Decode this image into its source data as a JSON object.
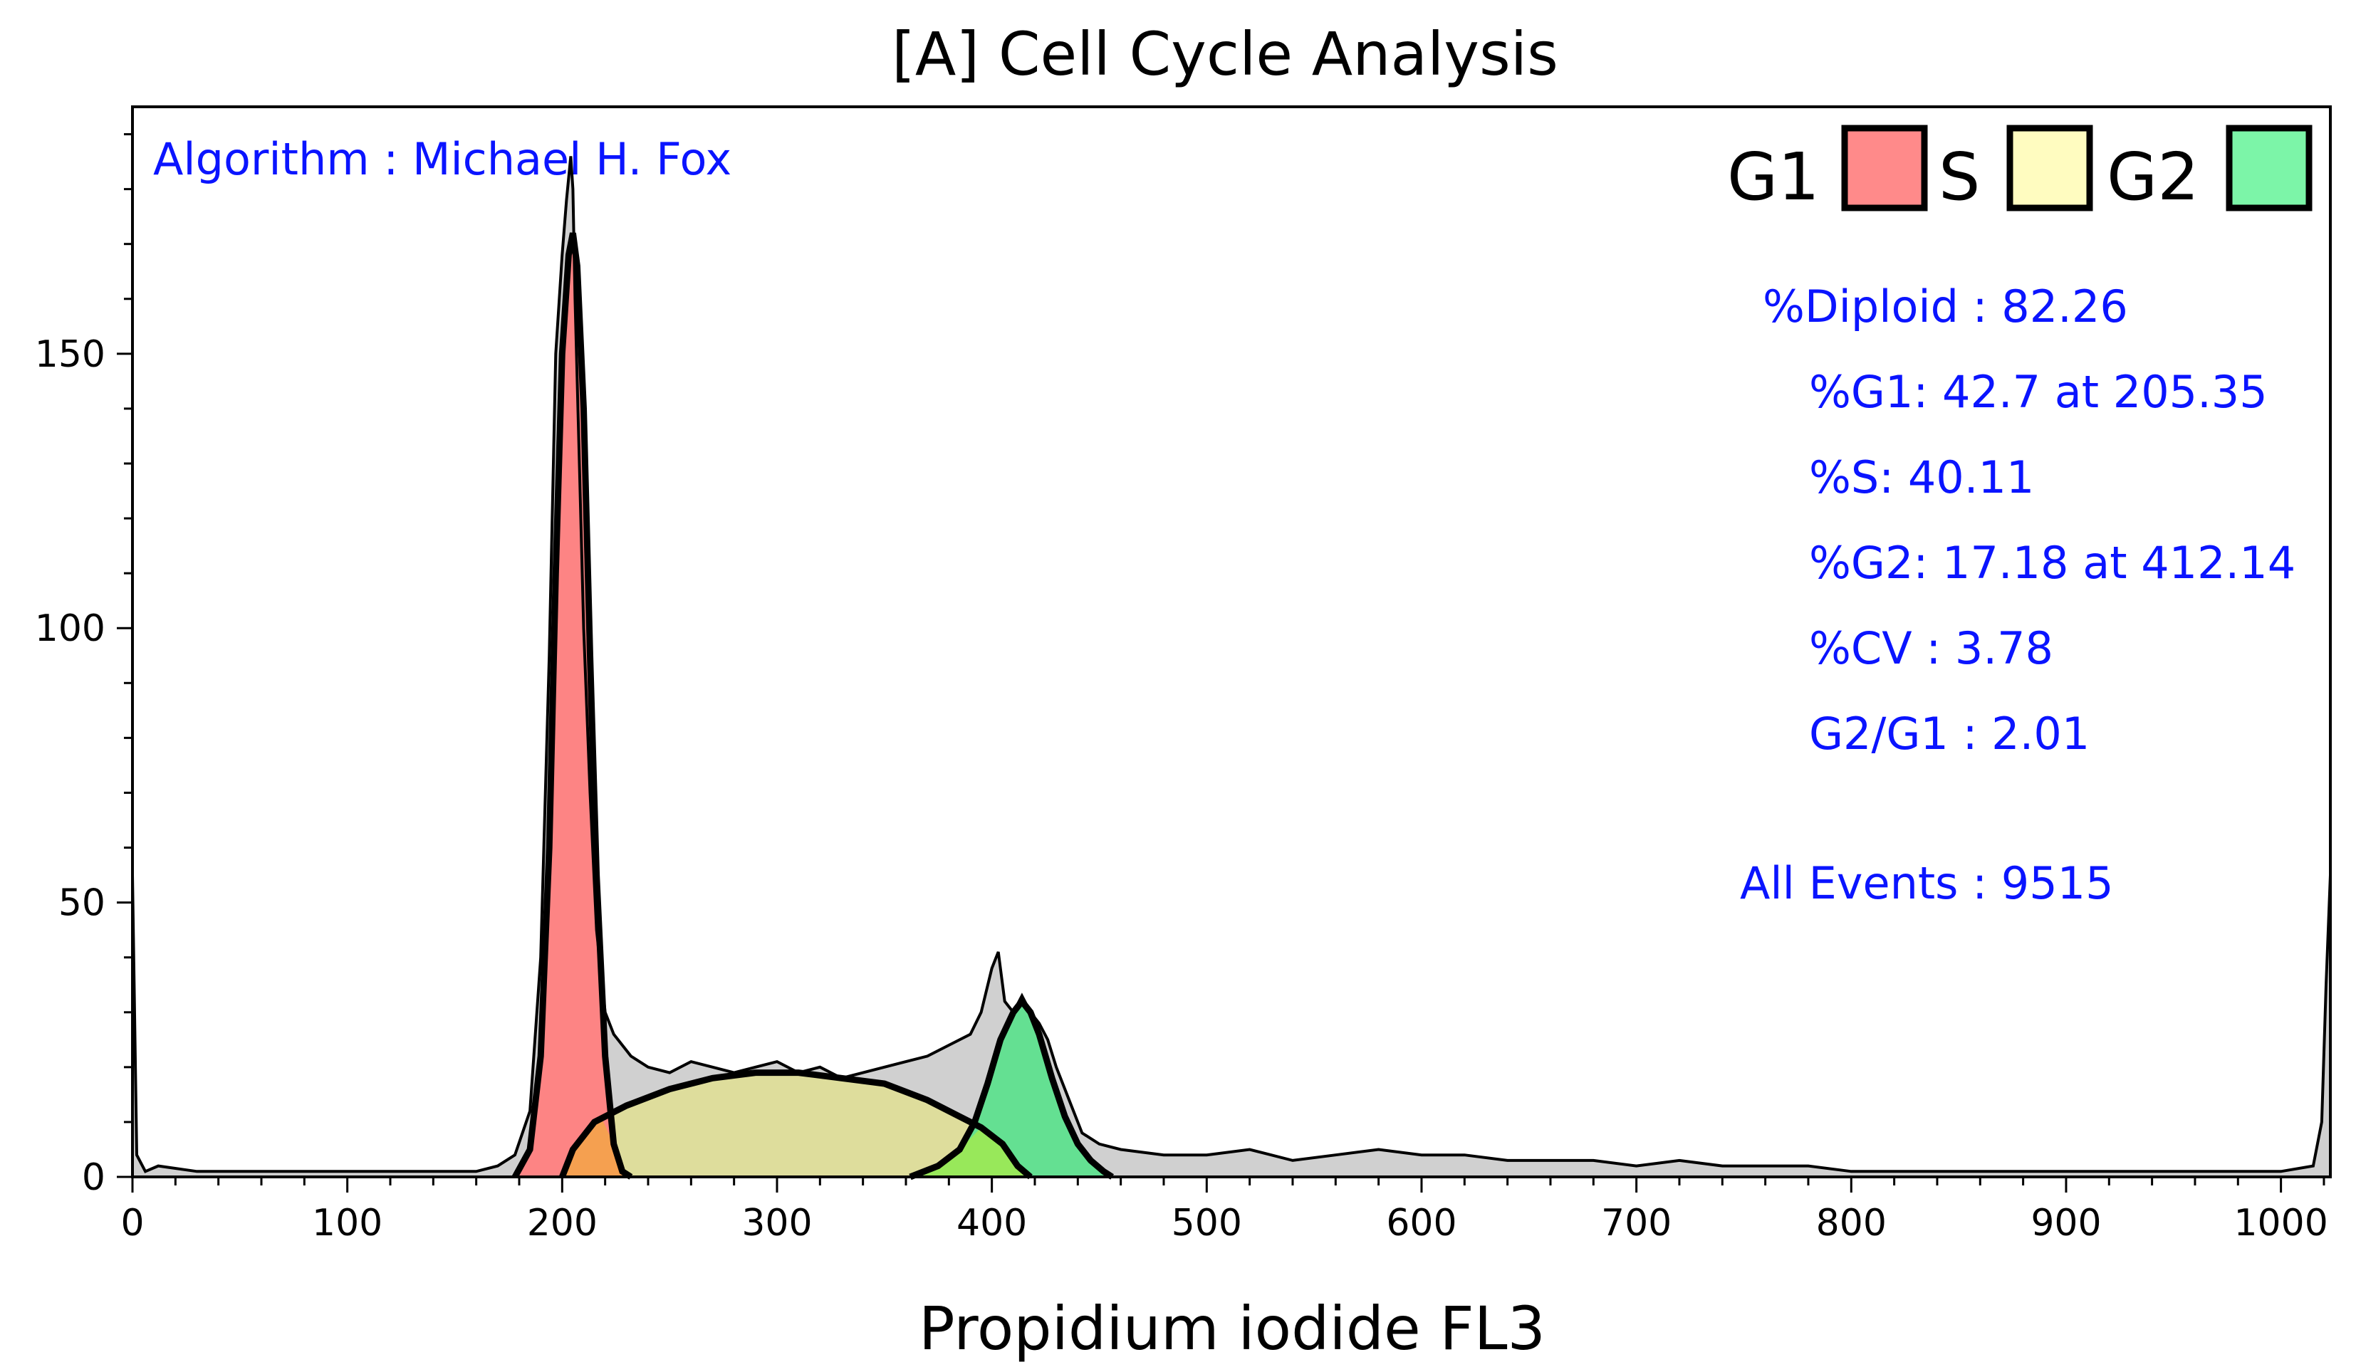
{
  "chart_data": {
    "type": "area",
    "title": "[A] Cell Cycle Analysis",
    "xlabel": "Propidium iodide FL3",
    "ylabel": "",
    "xlim": [
      0,
      1023
    ],
    "ylim": [
      0,
      195
    ],
    "x_ticks": [
      0,
      100,
      200,
      300,
      400,
      500,
      600,
      700,
      800,
      900,
      1000
    ],
    "y_ticks": [
      0,
      50,
      100,
      150
    ],
    "legend": [
      {
        "label": "G1",
        "color": "#ff8a8a"
      },
      {
        "label": "S",
        "color": "#fffcc0"
      },
      {
        "label": "G2",
        "color": "#7cf5a8"
      }
    ],
    "legend_position": "top-right",
    "colors": {
      "histogram_fill": "#d0d0d0",
      "g1_fill": "#ff8080",
      "s_fill": "#dedd9c",
      "g2_fill": "#5ee08e",
      "g1_s_overlap": "#f5a050",
      "s_g2_overlap": "#98e85a",
      "annotation_text": "#0a14ff"
    },
    "annotations": {
      "algorithm": "Algorithm : Michael H. Fox",
      "diploid": "%Diploid : 82.26",
      "g1": "%G1: 42.7 at 205.35",
      "s": "%S: 40.11",
      "g2": "%G2: 17.18 at 412.14",
      "cv": "%CV : 3.78",
      "ratio": "G2/G1 : 2.01",
      "events": "All Events : 9515"
    },
    "series": [
      {
        "name": "Histogram",
        "x": [
          0,
          2,
          6,
          12,
          30,
          60,
          100,
          140,
          160,
          170,
          178,
          185,
          190,
          194,
          197,
          200,
          202,
          204,
          205,
          206,
          208,
          210,
          213,
          216,
          220,
          224,
          228,
          232,
          236,
          240,
          250,
          260,
          270,
          280,
          290,
          300,
          310,
          320,
          330,
          340,
          350,
          360,
          370,
          380,
          390,
          395,
          400,
          403,
          406,
          410,
          414,
          418,
          422,
          426,
          430,
          436,
          442,
          450,
          460,
          480,
          500,
          520,
          540,
          560,
          580,
          600,
          620,
          640,
          660,
          680,
          700,
          720,
          740,
          760,
          780,
          800,
          840,
          880,
          920,
          960,
          1000,
          1015,
          1019,
          1021,
          1023
        ],
        "y": [
          55,
          4,
          1,
          2,
          1,
          1,
          1,
          1,
          1,
          2,
          4,
          12,
          40,
          95,
          150,
          168,
          178,
          186,
          180,
          160,
          130,
          100,
          70,
          45,
          30,
          26,
          24,
          22,
          21,
          20,
          19,
          21,
          20,
          19,
          20,
          21,
          19,
          20,
          18,
          19,
          20,
          21,
          22,
          24,
          26,
          30,
          38,
          41,
          32,
          30,
          33,
          30,
          28,
          25,
          20,
          14,
          8,
          6,
          5,
          4,
          4,
          5,
          3,
          4,
          5,
          4,
          4,
          3,
          3,
          3,
          2,
          3,
          2,
          2,
          2,
          1,
          1,
          1,
          1,
          1,
          1,
          2,
          10,
          35,
          55
        ]
      },
      {
        "name": "G1",
        "x": [
          178,
          185,
          190,
          194,
          197,
          200,
          203,
          205,
          207,
          210,
          213,
          216,
          220,
          224,
          228,
          232
        ],
        "y": [
          0,
          5,
          22,
          60,
          110,
          150,
          168,
          172,
          166,
          140,
          95,
          55,
          22,
          6,
          1,
          0
        ]
      },
      {
        "name": "S",
        "x": [
          200,
          205,
          215,
          230,
          250,
          270,
          290,
          310,
          330,
          350,
          370,
          385,
          395,
          405,
          412,
          418
        ],
        "y": [
          0,
          5,
          10,
          13,
          16,
          18,
          19,
          19,
          18,
          17,
          14,
          11,
          9,
          6,
          2,
          0
        ]
      },
      {
        "name": "G2",
        "x": [
          362,
          375,
          385,
          392,
          398,
          404,
          410,
          414,
          418,
          422,
          428,
          434,
          440,
          446,
          452,
          456
        ],
        "y": [
          0,
          2,
          5,
          10,
          17,
          25,
          30,
          32,
          30,
          26,
          18,
          11,
          6,
          3,
          1,
          0
        ]
      }
    ]
  }
}
